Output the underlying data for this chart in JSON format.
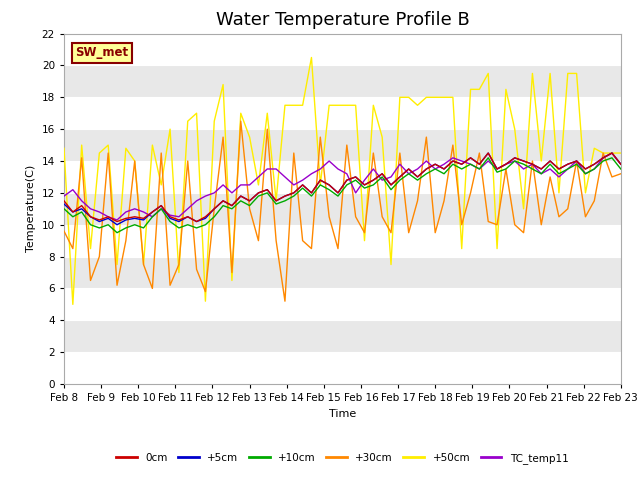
{
  "title": "Water Temperature Profile B",
  "xlabel": "Time",
  "ylabel": "Temperature(C)",
  "ylim": [
    0,
    22
  ],
  "yticks": [
    0,
    2,
    4,
    6,
    8,
    10,
    12,
    14,
    16,
    18,
    20,
    22
  ],
  "x_labels": [
    "Feb 8",
    "Feb 9",
    "Feb 10",
    "Feb 11",
    "Feb 12",
    "Feb 13",
    "Feb 14",
    "Feb 15",
    "Feb 16",
    "Feb 17",
    "Feb 18",
    "Feb 19",
    "Feb 20",
    "Feb 21",
    "Feb 22",
    "Feb 23"
  ],
  "colors": {
    "0cm": "#cc0000",
    "+5cm": "#0000cc",
    "+10cm": "#00aa00",
    "+30cm": "#ff8800",
    "+50cm": "#ffee00",
    "TC_temp11": "#9900cc"
  },
  "bg_color": "#e8e8e8",
  "grid_color": "#ffffff",
  "annotation_text": "SW_met",
  "annotation_bg": "#ffff99",
  "annotation_border": "#880000",
  "title_fontsize": 13,
  "axis_fontsize": 8,
  "tick_fontsize": 7.5,
  "series": {
    "0cm": [
      11.5,
      10.8,
      11.2,
      10.5,
      10.3,
      10.5,
      10.2,
      10.4,
      10.5,
      10.4,
      10.8,
      11.2,
      10.5,
      10.3,
      10.5,
      10.2,
      10.5,
      11.0,
      11.5,
      11.2,
      11.8,
      11.5,
      12.0,
      12.2,
      11.5,
      11.8,
      12.0,
      12.5,
      12.0,
      12.8,
      12.5,
      12.0,
      12.8,
      13.0,
      12.5,
      12.8,
      13.2,
      12.5,
      13.0,
      13.5,
      13.0,
      13.5,
      13.8,
      13.5,
      14.0,
      13.8,
      14.2,
      13.8,
      14.5,
      13.5,
      13.8,
      14.2,
      14.0,
      13.8,
      13.5,
      14.0,
      13.5,
      13.8,
      14.0,
      13.5,
      13.8,
      14.2,
      14.5,
      13.8
    ],
    "+5cm": [
      11.3,
      10.8,
      11.0,
      10.5,
      10.2,
      10.4,
      10.0,
      10.3,
      10.4,
      10.3,
      10.8,
      11.2,
      10.4,
      10.2,
      10.5,
      10.2,
      10.4,
      11.0,
      11.5,
      11.2,
      11.8,
      11.5,
      12.0,
      12.2,
      11.5,
      11.8,
      12.0,
      12.5,
      12.0,
      12.8,
      12.5,
      12.0,
      12.8,
      13.0,
      12.5,
      12.8,
      13.2,
      12.5,
      13.0,
      13.5,
      13.0,
      13.5,
      13.8,
      13.5,
      14.0,
      13.8,
      14.2,
      13.8,
      14.5,
      13.5,
      13.8,
      14.2,
      14.0,
      13.8,
      13.5,
      14.0,
      13.5,
      13.8,
      14.0,
      13.5,
      13.8,
      14.2,
      14.5,
      13.8
    ],
    "+10cm": [
      11.0,
      10.5,
      10.8,
      10.0,
      9.8,
      10.0,
      9.5,
      9.8,
      10.0,
      9.8,
      10.5,
      11.0,
      10.2,
      9.8,
      10.0,
      9.8,
      10.0,
      10.5,
      11.2,
      11.0,
      11.5,
      11.2,
      11.8,
      12.0,
      11.3,
      11.5,
      11.8,
      12.3,
      11.8,
      12.5,
      12.2,
      11.8,
      12.5,
      12.8,
      12.3,
      12.5,
      13.0,
      12.2,
      12.8,
      13.2,
      12.8,
      13.2,
      13.5,
      13.2,
      13.8,
      13.5,
      13.8,
      13.5,
      14.2,
      13.3,
      13.5,
      14.0,
      13.8,
      13.5,
      13.2,
      13.8,
      13.2,
      13.5,
      13.8,
      13.2,
      13.5,
      14.0,
      14.2,
      13.5
    ],
    "+30cm": [
      9.6,
      8.5,
      14.2,
      6.5,
      8.0,
      14.5,
      6.2,
      9.0,
      14.0,
      7.5,
      6.0,
      14.5,
      6.2,
      7.5,
      14.0,
      7.2,
      5.8,
      11.0,
      15.5,
      7.0,
      16.5,
      11.0,
      9.0,
      16.0,
      9.0,
      5.2,
      14.5,
      9.0,
      8.5,
      15.5,
      10.5,
      8.5,
      15.0,
      10.5,
      9.5,
      14.5,
      10.5,
      9.5,
      14.5,
      9.5,
      11.5,
      15.5,
      9.5,
      11.5,
      15.0,
      10.0,
      12.0,
      14.5,
      10.2,
      10.0,
      13.5,
      10.0,
      9.5,
      14.0,
      10.0,
      13.0,
      10.5,
      11.0,
      14.0,
      10.5,
      11.5,
      14.5,
      13.0,
      13.2
    ],
    "+50cm": [
      14.8,
      5.0,
      15.0,
      8.5,
      14.5,
      15.0,
      7.5,
      14.8,
      14.0,
      7.5,
      15.0,
      12.5,
      16.0,
      7.0,
      16.5,
      17.0,
      5.2,
      16.5,
      18.8,
      6.5,
      17.0,
      15.5,
      12.5,
      17.0,
      11.5,
      17.5,
      17.5,
      17.5,
      20.5,
      12.5,
      17.5,
      17.5,
      17.5,
      17.5,
      9.0,
      17.5,
      15.5,
      7.5,
      18.0,
      18.0,
      17.5,
      18.0,
      18.0,
      18.0,
      18.0,
      8.5,
      18.5,
      18.5,
      19.5,
      8.5,
      18.5,
      16.0,
      11.0,
      19.5,
      14.0,
      19.5,
      12.0,
      19.5,
      19.5,
      12.0,
      14.8,
      14.5,
      14.5,
      14.5
    ],
    "TC_temp11": [
      11.8,
      12.2,
      11.5,
      11.0,
      10.8,
      10.5,
      10.3,
      10.8,
      11.0,
      10.8,
      10.5,
      11.0,
      10.6,
      10.5,
      11.0,
      11.5,
      11.8,
      12.0,
      12.5,
      12.0,
      12.5,
      12.5,
      13.0,
      13.5,
      13.5,
      13.0,
      12.5,
      12.8,
      13.2,
      13.5,
      14.0,
      13.5,
      13.2,
      12.0,
      12.8,
      13.5,
      12.8,
      13.0,
      13.8,
      13.2,
      13.5,
      14.0,
      13.5,
      13.8,
      14.2,
      14.0,
      13.8,
      13.5,
      14.0,
      13.5,
      13.8,
      14.0,
      13.5,
      13.8,
      13.2,
      13.5,
      13.0,
      13.5,
      14.0,
      13.2,
      13.5,
      14.2,
      14.5,
      13.8
    ]
  }
}
